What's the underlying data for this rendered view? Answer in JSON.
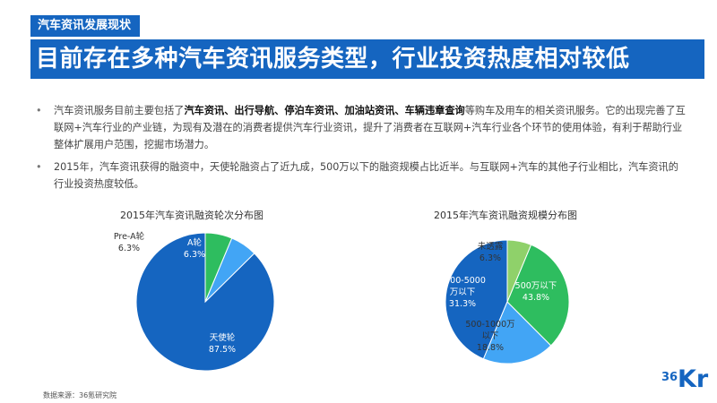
{
  "header": {
    "tag": "汽车资讯发展现状",
    "headline": "目前存在多种汽车资讯服务类型，行业投资热度相对较低"
  },
  "bullets": [
    {
      "parts": [
        {
          "t": "汽车资讯服务目前主要包括了",
          "b": false
        },
        {
          "t": "汽车资讯、出行导航、停泊车资讯、加油站资讯、车辆违章查询",
          "b": true
        },
        {
          "t": "等购车及用车的相关资讯服务。它的出现完善了互联网+汽车行业的产业链，为现有及潜在的消费者提供汽车行业资讯，提升了消费者在互联网+汽车行业各个环节的使用体验，有利于帮助行业整体扩展用户范围，挖掘市场潜力。",
          "b": false
        }
      ]
    },
    {
      "parts": [
        {
          "t": "2015年，汽车资讯获得的融资中，天使轮融资占了近九成，500万以下的融资规模占比近半。与互联网+汽车的其他子行业相比，汽车资讯的行业投资热度较低。",
          "b": false
        }
      ]
    }
  ],
  "chart_data": [
    {
      "type": "pie",
      "title": "2015年汽车资讯融资轮次分布图",
      "slices": [
        {
          "label": "天使轮",
          "value": 87.5,
          "value_label": "87.5%",
          "color": "#1565c0"
        },
        {
          "label": "Pre-A轮",
          "value": 6.3,
          "value_label": "6.3%",
          "color": "#42a5f5"
        },
        {
          "label": "A轮",
          "value": 6.3,
          "value_label": "6.3%",
          "color": "#2ebd5f"
        }
      ]
    },
    {
      "type": "pie",
      "title": "2015年汽车资讯融资规模分布图",
      "slices": [
        {
          "label": "500万以下",
          "value": 43.8,
          "value_label": "43.8%",
          "color": "#1565c0"
        },
        {
          "label": "500-1000万以下",
          "value": 18.8,
          "value_label": "18.8%",
          "color": "#42a5f5"
        },
        {
          "label": "1000-5000万以下",
          "value": 31.3,
          "value_label": "31.3%",
          "color": "#2ebd5f"
        },
        {
          "label": "未透露",
          "value": 6.3,
          "value_label": "6.3%",
          "color": "#8fd16a"
        }
      ]
    }
  ],
  "footer": {
    "source": "数据来源：36氪研究院",
    "logo_num": "36",
    "logo_text": "Kr"
  },
  "colors": {
    "brand": "#1565c0"
  }
}
